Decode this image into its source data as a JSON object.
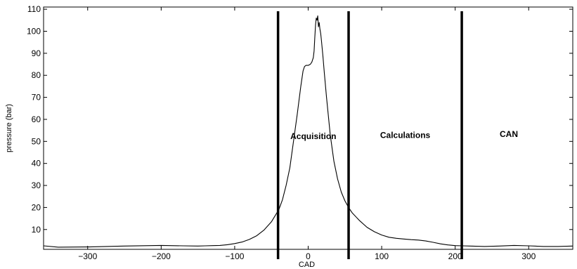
{
  "chart_data": {
    "type": "line",
    "title": "",
    "xlabel": "CAD",
    "ylabel": "pressure (bar)",
    "xlim": [
      -360,
      360
    ],
    "ylim": [
      1,
      111
    ],
    "xticks": [
      -300,
      -200,
      -100,
      0,
      100,
      200,
      300
    ],
    "yticks": [
      10,
      20,
      30,
      40,
      50,
      60,
      70,
      80,
      90,
      100,
      110
    ],
    "grid": false,
    "series": [
      {
        "x": [
          -360,
          -340,
          -300,
          -250,
          -200,
          -170,
          -150,
          -140,
          -130,
          -120,
          -110,
          -100,
          -90,
          -80,
          -70,
          -60,
          -50,
          -40,
          -35,
          -30,
          -25,
          -20,
          -15,
          -10,
          -7,
          -5,
          -3,
          0,
          3,
          5,
          7,
          8,
          9,
          10,
          11,
          12,
          13,
          14,
          15,
          16,
          17,
          18,
          20,
          22,
          25,
          30,
          35,
          40,
          45,
          50,
          55,
          60,
          70,
          80,
          90,
          100,
          110,
          120,
          130,
          140,
          150,
          160,
          170,
          180,
          190,
          200,
          210,
          220,
          240,
          260,
          280,
          300,
          320,
          340,
          360
        ],
        "values": [
          2.6,
          2.0,
          2.1,
          2.5,
          2.8,
          2.6,
          2.5,
          2.6,
          2.7,
          2.8,
          3.1,
          3.6,
          4.3,
          5.5,
          7.2,
          9.8,
          13.5,
          19,
          23.5,
          30,
          38,
          50,
          62,
          75,
          82,
          84,
          84.5,
          84.5,
          85,
          86,
          88,
          91,
          97,
          103,
          106,
          105,
          107,
          102,
          104,
          101,
          99,
          96,
          89,
          81,
          70,
          53,
          41,
          33,
          27,
          23,
          20,
          17.5,
          14,
          11,
          9,
          7.5,
          6.5,
          6,
          5.7,
          5.4,
          5.2,
          4.8,
          4.2,
          3.5,
          3.0,
          2.7,
          2.6,
          2.5,
          2.3,
          2.5,
          2.8,
          2.6,
          2.3,
          2.3,
          2.5
        ]
      }
    ],
    "vlines": [
      -41,
      55,
      209
    ],
    "annotations": [
      {
        "text": "Acquisition",
        "x": 7,
        "y": 51
      },
      {
        "text": "Calculations",
        "x": 132,
        "y": 51.5
      },
      {
        "text": "CAN",
        "x": 273,
        "y": 52
      }
    ]
  }
}
